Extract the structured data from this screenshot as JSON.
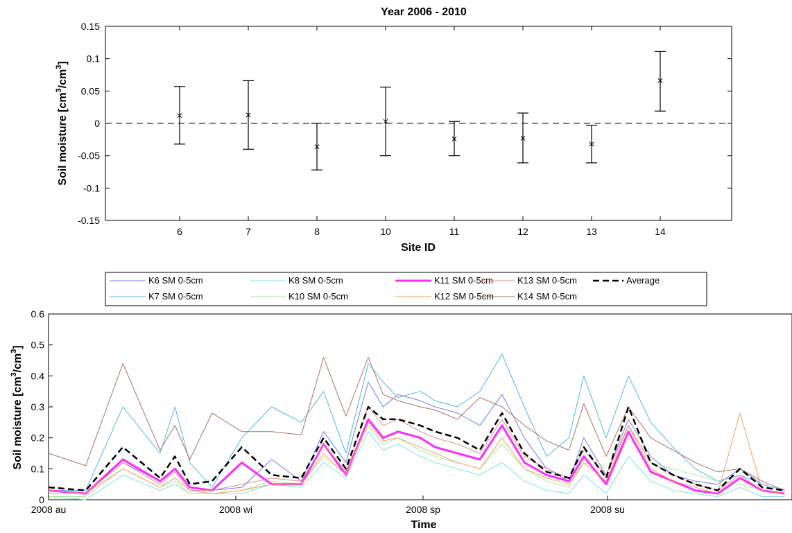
{
  "chart_data": [
    {
      "type": "scatter",
      "title": "Year 2006 - 2010",
      "xlabel": "Site ID",
      "ylabel": "Soil moisture [cm3/cm3]",
      "categories": [
        "6",
        "7",
        "8",
        "10",
        "11",
        "12",
        "13",
        "14"
      ],
      "values": [
        0.012,
        0.013,
        -0.036,
        0.003,
        -0.024,
        -0.023,
        -0.032,
        0.066
      ],
      "error_lower": [
        -0.032,
        -0.04,
        -0.072,
        -0.05,
        -0.05,
        -0.061,
        -0.061,
        0.019
      ],
      "error_upper": [
        0.057,
        0.066,
        0.0,
        0.056,
        0.003,
        0.016,
        -0.003,
        0.111
      ],
      "reference_line": 0,
      "ylim": [
        -0.15,
        0.15
      ],
      "yticks": [
        "0.15",
        "0.1",
        "0.05",
        "0",
        "-0.05",
        "-0.1",
        "-0.15"
      ],
      "grid": false
    },
    {
      "type": "line",
      "xlabel": "Time",
      "ylabel": "Soil moisture [cm3/cm3]",
      "ylim": [
        0,
        0.6
      ],
      "yticks": [
        "0.6",
        "0.5",
        "0.4",
        "0.3",
        "0.2",
        "0.1",
        "0"
      ],
      "xticks": [
        "2008 au",
        "2008 wi",
        "2008 sp",
        "2008 su"
      ],
      "legend_position": "top",
      "x": [
        0,
        5,
        10,
        15,
        17,
        19,
        22,
        26,
        30,
        34,
        37,
        40,
        43,
        45,
        47,
        50,
        52,
        55,
        58,
        61,
        64,
        67,
        70,
        72,
        75,
        78,
        81,
        84,
        87,
        90,
        93,
        96,
        99
      ],
      "series": [
        {
          "name": "K6 SM 0-5cm",
          "color": "#6f7cf2",
          "width": 1,
          "values": [
            0.03,
            0.02,
            0.12,
            0.06,
            0.1,
            0.04,
            0.03,
            0.04,
            0.13,
            0.06,
            0.22,
            0.12,
            0.38,
            0.3,
            0.34,
            0.32,
            0.3,
            0.28,
            0.24,
            0.34,
            0.2,
            0.1,
            0.06,
            0.2,
            0.08,
            0.26,
            0.14,
            0.08,
            0.06,
            0.05,
            0.1,
            0.05,
            0.03
          ]
        },
        {
          "name": "K7 SM 0-5cm",
          "color": "#4cb8e8",
          "width": 1,
          "values": [
            0.03,
            0.03,
            0.3,
            0.15,
            0.3,
            0.12,
            0.04,
            0.2,
            0.3,
            0.25,
            0.35,
            0.15,
            0.44,
            0.38,
            0.33,
            0.35,
            0.32,
            0.3,
            0.35,
            0.47,
            0.3,
            0.14,
            0.2,
            0.4,
            0.2,
            0.4,
            0.25,
            0.17,
            0.1,
            0.06,
            0.08,
            0.05,
            0.03
          ]
        },
        {
          "name": "K8 SM 0-5cm",
          "color": "#7fe0e6",
          "width": 1,
          "values": [
            0.01,
            0.0,
            0.08,
            0.03,
            0.05,
            0.02,
            0.02,
            0.02,
            0.05,
            0.04,
            0.12,
            0.07,
            0.22,
            0.16,
            0.18,
            0.14,
            0.12,
            0.1,
            0.08,
            0.12,
            0.06,
            0.03,
            0.02,
            0.08,
            0.02,
            0.14,
            0.06,
            0.03,
            0.02,
            0.01,
            0.04,
            0.01,
            0.01
          ]
        },
        {
          "name": "K10 SM 0-5cm",
          "color": "#a8e89a",
          "width": 1,
          "values": [
            0.01,
            0.01,
            0.1,
            0.04,
            0.06,
            0.02,
            0.02,
            0.03,
            0.06,
            0.05,
            0.14,
            0.08,
            0.24,
            0.18,
            0.2,
            0.16,
            0.14,
            0.12,
            0.1,
            0.18,
            0.1,
            0.06,
            0.04,
            0.12,
            0.06,
            0.2,
            0.12,
            0.1,
            0.08,
            0.06,
            0.05,
            0.03,
            0.02
          ]
        },
        {
          "name": "K11 SM 0-5cm",
          "color": "#ff2aff",
          "width": 3,
          "values": [
            0.03,
            0.02,
            0.13,
            0.06,
            0.1,
            0.04,
            0.03,
            0.12,
            0.05,
            0.05,
            0.18,
            0.08,
            0.26,
            0.2,
            0.22,
            0.2,
            0.17,
            0.15,
            0.13,
            0.24,
            0.12,
            0.08,
            0.06,
            0.14,
            0.05,
            0.22,
            0.09,
            0.06,
            0.03,
            0.02,
            0.07,
            0.03,
            0.02
          ]
        },
        {
          "name": "K12 SM 0-5cm",
          "color": "#f5a062",
          "width": 1,
          "values": [
            0.02,
            0.02,
            0.1,
            0.04,
            0.07,
            0.03,
            0.02,
            0.03,
            0.05,
            0.05,
            0.15,
            0.08,
            0.25,
            0.19,
            0.2,
            0.17,
            0.15,
            0.12,
            0.1,
            0.2,
            0.1,
            0.07,
            0.05,
            0.12,
            0.06,
            0.24,
            0.1,
            0.06,
            0.04,
            0.02,
            0.28,
            0.03,
            0.02
          ]
        },
        {
          "name": "K13 SM 0-5cm",
          "color": "#e09080",
          "width": 1,
          "values": [
            0.03,
            0.02,
            0.12,
            0.05,
            0.09,
            0.03,
            0.03,
            0.05,
            0.07,
            0.06,
            0.18,
            0.09,
            0.3,
            0.24,
            0.26,
            0.22,
            0.2,
            0.18,
            0.15,
            0.26,
            0.14,
            0.1,
            0.07,
            0.16,
            0.08,
            0.24,
            0.12,
            0.08,
            0.05,
            0.03,
            0.08,
            0.03,
            0.02
          ]
        },
        {
          "name": "K14 SM 0-5cm",
          "color": "#b06e68",
          "width": 1,
          "values": [
            0.15,
            0.11,
            0.44,
            0.16,
            0.24,
            0.13,
            0.28,
            0.22,
            0.22,
            0.21,
            0.46,
            0.27,
            0.46,
            0.34,
            0.32,
            0.3,
            0.29,
            0.26,
            0.33,
            0.3,
            0.24,
            0.19,
            0.16,
            0.31,
            0.14,
            0.3,
            0.2,
            0.16,
            0.12,
            0.09,
            0.1,
            0.06,
            0.03
          ]
        },
        {
          "name": "Average",
          "color": "#000000",
          "width": 2.5,
          "dashed": true,
          "values": [
            0.04,
            0.03,
            0.17,
            0.07,
            0.14,
            0.05,
            0.06,
            0.17,
            0.08,
            0.07,
            0.2,
            0.1,
            0.3,
            0.26,
            0.26,
            0.24,
            0.22,
            0.2,
            0.16,
            0.28,
            0.15,
            0.09,
            0.07,
            0.17,
            0.07,
            0.3,
            0.12,
            0.08,
            0.05,
            0.03,
            0.1,
            0.04,
            0.03
          ]
        }
      ]
    }
  ]
}
